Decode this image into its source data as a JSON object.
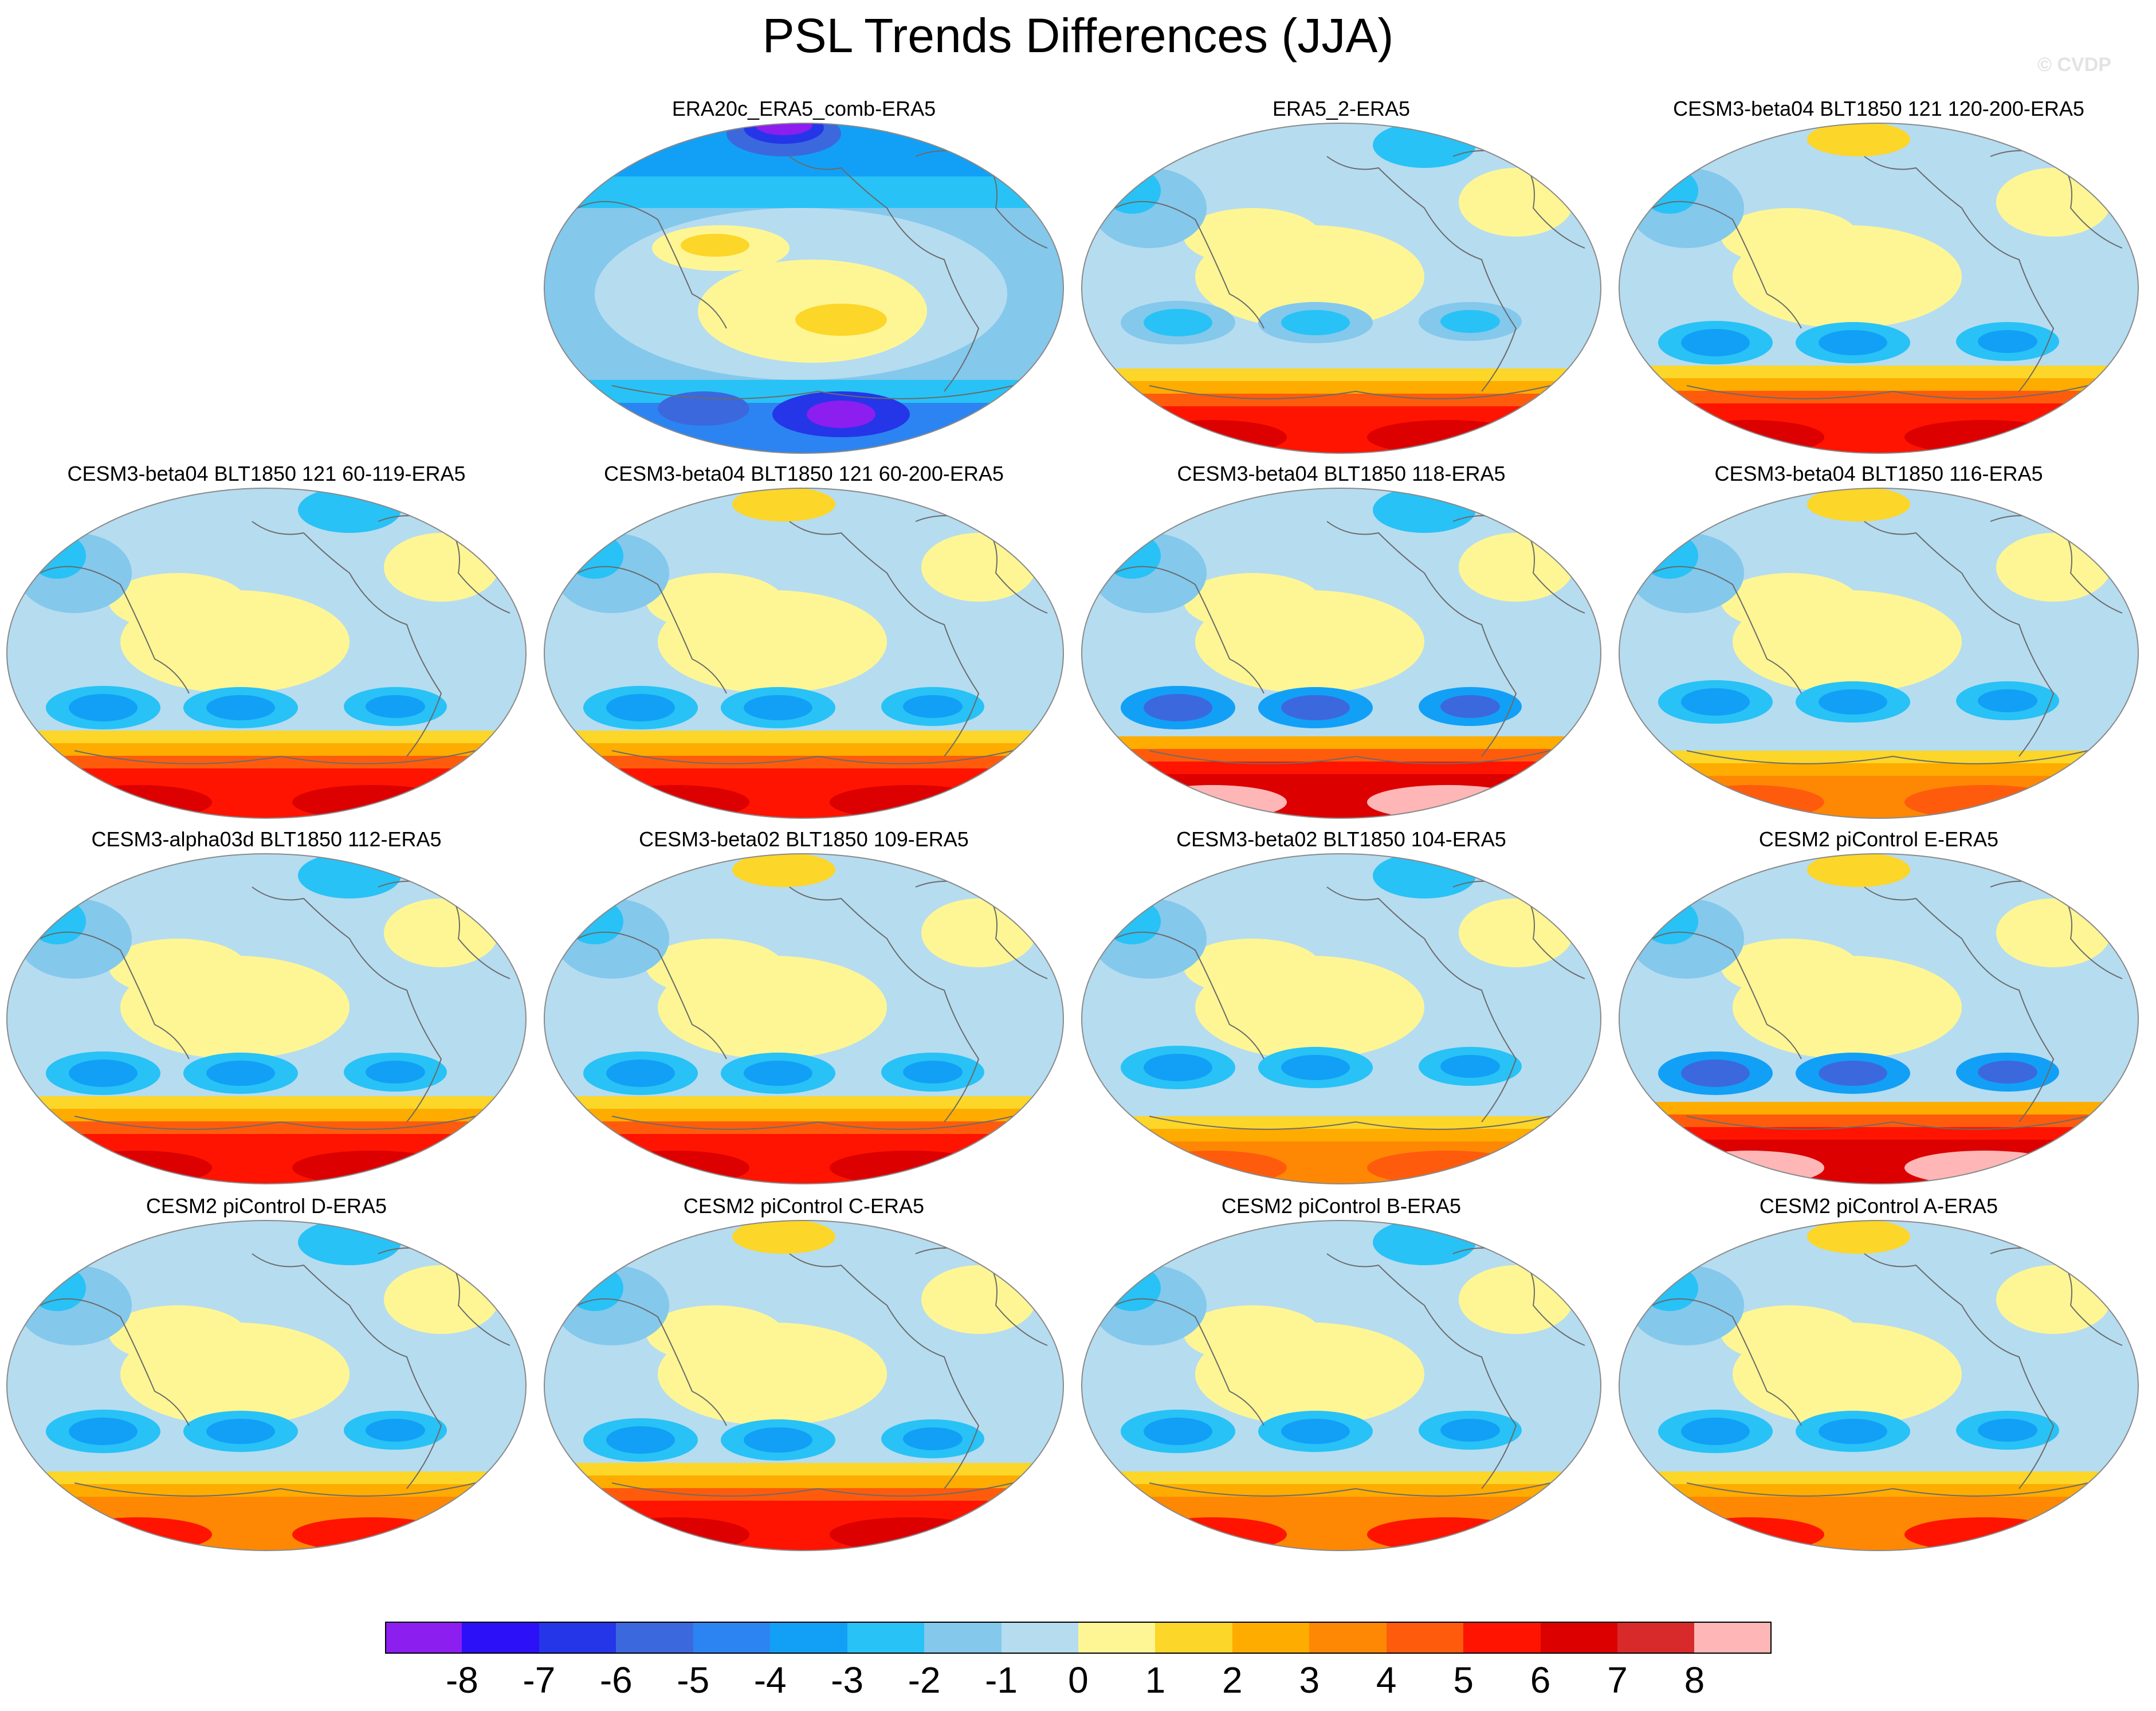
{
  "title": "PSL Trends Differences (JJA)",
  "watermark": "© CVDP",
  "panels": [
    {
      "label": "ERA20c_ERA5_comb-ERA5",
      "style": "era20c"
    },
    {
      "label": "ERA5_2-ERA5",
      "style": "era5"
    },
    {
      "label": "CESM3-beta04 BLT1850 121 120-200-ERA5",
      "style": "strong"
    },
    {
      "label": "CESM3-beta04 BLT1850 121 60-119-ERA5",
      "style": "strong"
    },
    {
      "label": "CESM3-beta04 BLT1850 121 60-200-ERA5",
      "style": "strong"
    },
    {
      "label": "CESM3-beta04 BLT1850 118-ERA5",
      "style": "extreme"
    },
    {
      "label": "CESM3-beta04 BLT1850 116-ERA5",
      "style": "patchy"
    },
    {
      "label": "CESM3-alpha03d BLT1850 112-ERA5",
      "style": "strong"
    },
    {
      "label": "CESM3-beta02 BLT1850 109-ERA5",
      "style": "strong"
    },
    {
      "label": "CESM3-beta02 BLT1850 104-ERA5",
      "style": "patchy"
    },
    {
      "label": "CESM2 piControl E-ERA5",
      "style": "extreme"
    },
    {
      "label": "CESM2 piControl D-ERA5",
      "style": "moderate"
    },
    {
      "label": "CESM2 piControl C-ERA5",
      "style": "strong"
    },
    {
      "label": "CESM2 piControl B-ERA5",
      "style": "moderate"
    },
    {
      "label": "CESM2 piControl A-ERA5",
      "style": "moderate"
    }
  ],
  "colorbar": {
    "colors": [
      "#8c1ef0",
      "#2c10f8",
      "#2436e8",
      "#3c68de",
      "#2c84f2",
      "#12a0f6",
      "#28c2f6",
      "#84c8ec",
      "#b6dcf0",
      "#fef694",
      "#fcd628",
      "#feac00",
      "#fe8804",
      "#fe5c0c",
      "#fe1400",
      "#dc0000",
      "#d82a2a",
      "#feb6b6"
    ],
    "labels": [
      "-8",
      "-7",
      "-6",
      "-5",
      "-4",
      "-3",
      "-2",
      "-1",
      "0",
      "1",
      "2",
      "3",
      "4",
      "5",
      "6",
      "7",
      "8"
    ]
  }
}
